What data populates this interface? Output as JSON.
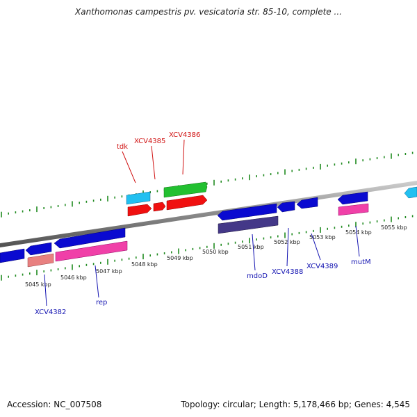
{
  "title": "Xanthomonas campestris pv. vesicatoria str. 85-10, complete ...",
  "footer": {
    "accession": "Accession: NC_007508",
    "stats": "Topology: circular; Length: 5,178,466 bp; Genes: 4,545"
  },
  "colors": {
    "backbone": "#8a8a8a",
    "tick_minor": "#1f8a1f",
    "tick_major": "#1f8a1f",
    "label_blue": "#1010b0",
    "label_red": "#d01010",
    "blue": "#0a0ad0",
    "cyan": "#22c0f0",
    "red": "#f01010",
    "green": "#22c030",
    "pink": "#f040a8",
    "salmon": "#e88080",
    "navy": "#443888"
  },
  "axis": {
    "unit": "kbp",
    "ticks": [
      "5045 kbp",
      "5046 kbp",
      "5047 kbp",
      "5048 kbp",
      "5049 kbp",
      "5050 kbp",
      "5051 kbp",
      "5052 kbp",
      "5053 kbp",
      "5054 kbp",
      "5055 kbp"
    ]
  },
  "gene_labels": [
    {
      "name": "tdk",
      "color": "red"
    },
    {
      "name": "XCV4385",
      "color": "red"
    },
    {
      "name": "XCV4386",
      "color": "red"
    },
    {
      "name": "XCV4382",
      "color": "blue"
    },
    {
      "name": "rep",
      "color": "blue"
    },
    {
      "name": "mdoD",
      "color": "blue"
    },
    {
      "name": "XCV4388",
      "color": "blue"
    },
    {
      "name": "XCV4389",
      "color": "blue"
    },
    {
      "name": "mutM",
      "color": "blue"
    }
  ]
}
